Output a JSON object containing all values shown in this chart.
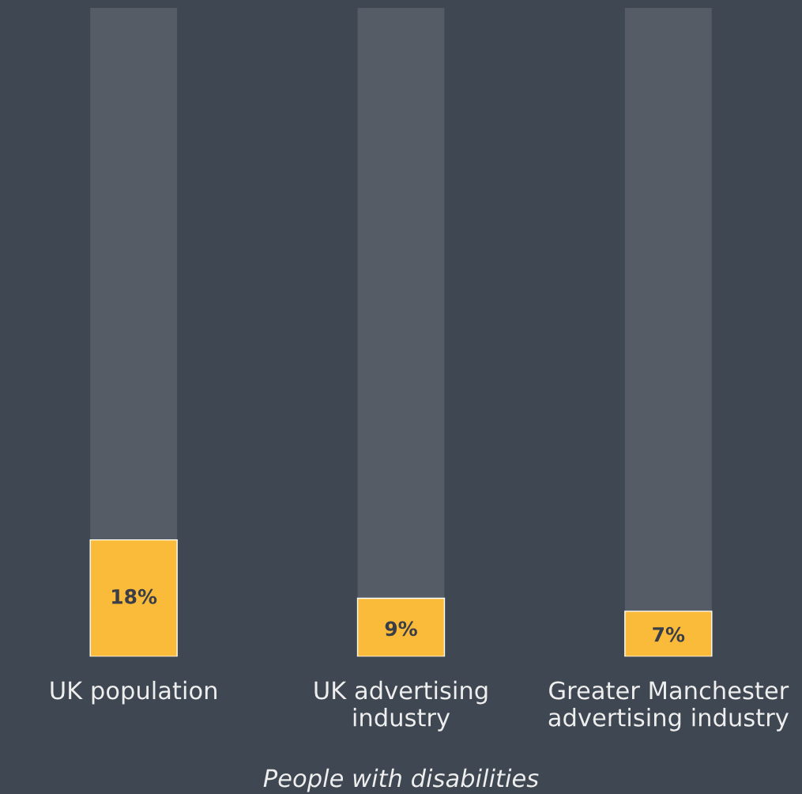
{
  "chart_data": {
    "type": "bar",
    "categories": [
      "UK population",
      "UK advertising\nindustry",
      "Greater Manchester\nadvertising industry"
    ],
    "values": [
      18,
      9,
      7
    ],
    "color": "#fbbb3a",
    "data_labels": true,
    "value_labels": [
      "18%",
      "9%",
      "7%"
    ],
    "ylim": [
      0,
      100
    ],
    "tick_labels": "x",
    "xlabel": "People with disabilities",
    "grid": false,
    "legend": false
  }
}
